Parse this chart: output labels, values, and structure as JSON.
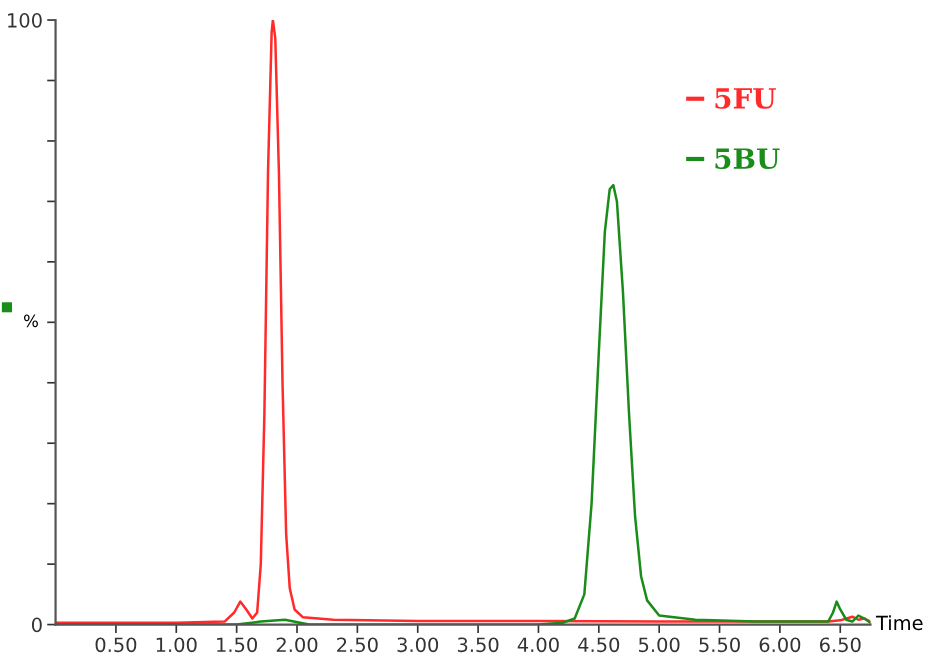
{
  "chart_data": {
    "type": "line",
    "xlabel": "Time",
    "ylabel": "%",
    "xlim": [
      0,
      6.75
    ],
    "ylim": [
      0,
      100
    ],
    "xticks": [
      {
        "value": 0.5,
        "label": "0.50"
      },
      {
        "value": 1.0,
        "label": "1.00"
      },
      {
        "value": 1.5,
        "label": "1.50"
      },
      {
        "value": 2.0,
        "label": "2.00"
      },
      {
        "value": 2.5,
        "label": "2.50"
      },
      {
        "value": 3.0,
        "label": "3.00"
      },
      {
        "value": 3.5,
        "label": "3.50"
      },
      {
        "value": 4.0,
        "label": "4.00"
      },
      {
        "value": 4.5,
        "label": "4.50"
      },
      {
        "value": 5.0,
        "label": "5.00"
      },
      {
        "value": 5.5,
        "label": "5.50"
      },
      {
        "value": 6.0,
        "label": "6.00"
      },
      {
        "value": 6.5,
        "label": "6.50"
      }
    ],
    "yticks": [
      0,
      {
        "value": 10,
        "label": null
      },
      {
        "value": 20,
        "label": null
      },
      {
        "value": 30,
        "label": null
      },
      {
        "value": 40,
        "label": null
      },
      {
        "value": 50,
        "label": null
      },
      {
        "value": 60,
        "label": null
      },
      {
        "value": 70,
        "label": null
      },
      {
        "value": 80,
        "label": null
      },
      {
        "value": 90,
        "label": null
      },
      100
    ],
    "grid": false,
    "legend": "top right",
    "marker": "none",
    "line_style": "solid",
    "series": [
      {
        "name": "5FU",
        "color": "#ff2a2a",
        "x": [
          0,
          1.0,
          1.4,
          1.48,
          1.53,
          1.58,
          1.63,
          1.67,
          1.7,
          1.73,
          1.76,
          1.79,
          1.8,
          1.82,
          1.85,
          1.88,
          1.91,
          1.94,
          1.98,
          2.05,
          2.3,
          3.0,
          4.0,
          5.0,
          6.0,
          6.4,
          6.5,
          6.6,
          6.65,
          6.7,
          6.75
        ],
        "values": [
          0.3,
          0.3,
          0.5,
          2,
          3.8,
          2.5,
          1.0,
          2,
          10,
          35,
          75,
          98,
          100,
          97,
          75,
          40,
          15,
          6,
          2.5,
          1.2,
          0.8,
          0.6,
          0.6,
          0.5,
          0.5,
          0.5,
          0.7,
          1.3,
          0.8,
          1.0,
          0.5
        ]
      },
      {
        "name": "5BU",
        "color": "#1a8c1a",
        "x": [
          0,
          1.5,
          1.7,
          1.9,
          2.1,
          4.0,
          4.2,
          4.3,
          4.38,
          4.44,
          4.5,
          4.55,
          4.59,
          4.62,
          4.65,
          4.7,
          4.75,
          4.8,
          4.85,
          4.9,
          5.0,
          5.3,
          5.8,
          6.4,
          6.44,
          6.47,
          6.5,
          6.55,
          6.6,
          6.65,
          6.7,
          6.75
        ],
        "values": [
          0,
          0,
          0.5,
          0.8,
          0,
          0,
          0.3,
          1,
          5,
          20,
          45,
          65,
          72,
          72.7,
          70,
          55,
          35,
          18,
          8,
          4,
          1.5,
          0.8,
          0.5,
          0.5,
          2,
          3.8,
          2.5,
          0.8,
          0.5,
          1.5,
          1,
          0.3
        ]
      }
    ]
  }
}
